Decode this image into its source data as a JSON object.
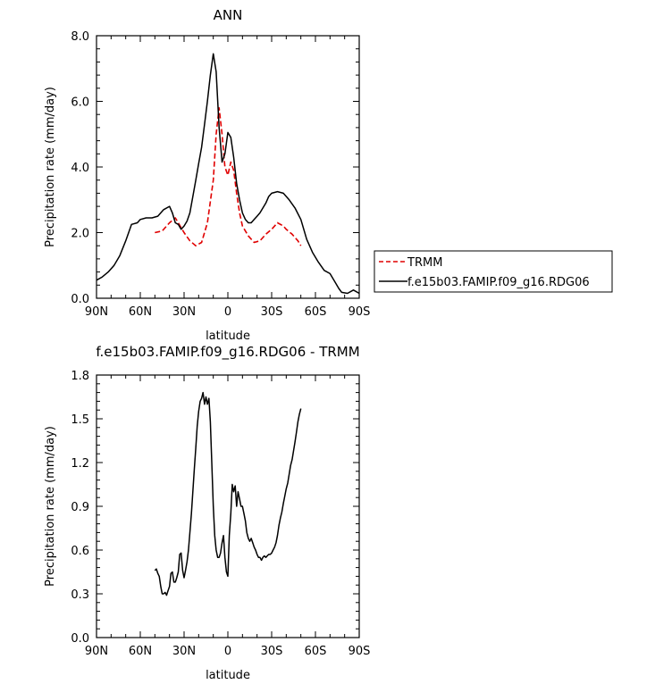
{
  "chart_data": [
    {
      "type": "line",
      "title": "ANN",
      "xlabel": "latitude",
      "ylabel": "Precipitation rate (mm/day)",
      "xlim": [
        90,
        -90
      ],
      "ylim": [
        0.0,
        8.0
      ],
      "xticks": [
        90,
        60,
        30,
        0,
        -30,
        -60,
        -90
      ],
      "xtick_labels": [
        "90N",
        "60N",
        "30N",
        "0",
        "30S",
        "60S",
        "90S"
      ],
      "yticks": [
        0.0,
        2.0,
        4.0,
        6.0,
        8.0
      ],
      "ytick_labels": [
        "0.0",
        "2.0",
        "4.0",
        "6.0",
        "8.0"
      ],
      "legend_placement": "right, outside the plot",
      "series": [
        {
          "name": "TRMM",
          "color": "#e00000",
          "dash": true,
          "x": [
            50,
            45,
            40,
            36,
            30,
            26,
            22,
            18,
            14,
            10,
            8,
            6,
            4,
            2,
            0,
            -2,
            -4,
            -6,
            -8,
            -10,
            -14,
            -18,
            -22,
            -26,
            -30,
            -34,
            -38,
            -40,
            -44,
            -48,
            -50
          ],
          "y": [
            2.0,
            2.05,
            2.3,
            2.45,
            2.0,
            1.75,
            1.6,
            1.7,
            2.3,
            3.6,
            5.0,
            5.8,
            5.0,
            4.0,
            3.75,
            4.15,
            3.9,
            3.2,
            2.6,
            2.2,
            1.9,
            1.7,
            1.75,
            1.95,
            2.1,
            2.3,
            2.2,
            2.1,
            1.95,
            1.75,
            1.6
          ]
        },
        {
          "name": "f.e15b03.FAMIP.f09_g16.RDG06",
          "color": "#000000",
          "dash": false,
          "x": [
            90,
            86,
            82,
            78,
            74,
            70,
            66,
            62,
            60,
            56,
            52,
            48,
            44,
            40,
            38,
            36,
            34,
            32,
            30,
            28,
            26,
            24,
            22,
            20,
            18,
            16,
            14,
            12,
            10,
            8,
            6,
            4,
            2,
            0,
            -2,
            -4,
            -6,
            -8,
            -10,
            -12,
            -14,
            -16,
            -18,
            -20,
            -22,
            -24,
            -26,
            -28,
            -30,
            -34,
            -38,
            -42,
            -46,
            -50,
            -54,
            -58,
            -62,
            -66,
            -70,
            -74,
            -76,
            -78,
            -82,
            -86,
            -90
          ],
          "y": [
            0.55,
            0.65,
            0.8,
            1.0,
            1.3,
            1.75,
            2.25,
            2.3,
            2.4,
            2.45,
            2.45,
            2.5,
            2.7,
            2.8,
            2.6,
            2.3,
            2.25,
            2.1,
            2.2,
            2.35,
            2.6,
            3.1,
            3.6,
            4.1,
            4.6,
            5.3,
            6.0,
            6.8,
            7.45,
            6.9,
            5.2,
            4.15,
            4.4,
            5.05,
            4.9,
            4.3,
            3.5,
            3.0,
            2.6,
            2.4,
            2.3,
            2.3,
            2.4,
            2.5,
            2.6,
            2.75,
            2.9,
            3.1,
            3.2,
            3.25,
            3.2,
            3.0,
            2.75,
            2.4,
            1.8,
            1.4,
            1.1,
            0.85,
            0.75,
            0.45,
            0.3,
            0.18,
            0.15,
            0.25,
            0.15
          ]
        }
      ]
    },
    {
      "type": "line",
      "title": "f.e15b03.FAMIP.f09_g16.RDG06 - TRMM",
      "xlabel": "latitude",
      "ylabel": "Precipitation rate (mm/day)",
      "xlim": [
        90,
        -90
      ],
      "ylim": [
        0.0,
        1.8
      ],
      "xticks": [
        90,
        60,
        30,
        0,
        -30,
        -60,
        -90
      ],
      "xtick_labels": [
        "90N",
        "60N",
        "30N",
        "0",
        "30S",
        "60S",
        "90S"
      ],
      "yticks": [
        0.0,
        0.3,
        0.6,
        0.9,
        1.2,
        1.5,
        1.8
      ],
      "ytick_labels": [
        "0.0",
        "0.3",
        "0.6",
        "0.9",
        "1.2",
        "1.5",
        "1.8"
      ],
      "series": [
        {
          "color": "#000000",
          "dash": false,
          "x": [
            50,
            49,
            48,
            47,
            46,
            45,
            44,
            43,
            42,
            41,
            40,
            39,
            38,
            37,
            36,
            35,
            34,
            33,
            32,
            31,
            30,
            29,
            28,
            27,
            26,
            25,
            24,
            23,
            22,
            21,
            20,
            19,
            18,
            17,
            16,
            15,
            14,
            13,
            12,
            11,
            10,
            9,
            8,
            7,
            6,
            5,
            4,
            3,
            2,
            1,
            0,
            -1,
            -2,
            -3,
            -4,
            -5,
            -6,
            -7,
            -8,
            -9,
            -10,
            -11,
            -12,
            -13,
            -14,
            -15,
            -16,
            -17,
            -18,
            -19,
            -20,
            -21,
            -22,
            -23,
            -24,
            -25,
            -26,
            -27,
            -28,
            -29,
            -30,
            -31,
            -32,
            -33,
            -34,
            -35,
            -36,
            -37,
            -38,
            -39,
            -40,
            -41,
            -42,
            -43,
            -44,
            -45,
            -46,
            -47,
            -48,
            -49,
            -50
          ],
          "y": [
            0.46,
            0.47,
            0.44,
            0.42,
            0.35,
            0.3,
            0.3,
            0.31,
            0.29,
            0.32,
            0.35,
            0.44,
            0.45,
            0.38,
            0.38,
            0.41,
            0.45,
            0.57,
            0.58,
            0.46,
            0.41,
            0.46,
            0.52,
            0.6,
            0.72,
            0.85,
            1.0,
            1.15,
            1.3,
            1.45,
            1.55,
            1.62,
            1.64,
            1.68,
            1.6,
            1.65,
            1.6,
            1.64,
            1.48,
            1.2,
            0.9,
            0.7,
            0.6,
            0.55,
            0.55,
            0.58,
            0.65,
            0.7,
            0.55,
            0.45,
            0.42,
            0.7,
            0.85,
            1.05,
            1.0,
            1.04,
            0.9,
            1.0,
            0.95,
            0.9,
            0.9,
            0.85,
            0.8,
            0.72,
            0.68,
            0.66,
            0.68,
            0.65,
            0.62,
            0.6,
            0.57,
            0.55,
            0.55,
            0.53,
            0.55,
            0.56,
            0.55,
            0.56,
            0.57,
            0.57,
            0.58,
            0.6,
            0.62,
            0.65,
            0.7,
            0.77,
            0.82,
            0.86,
            0.92,
            0.97,
            1.02,
            1.06,
            1.12,
            1.18,
            1.22,
            1.28,
            1.34,
            1.41,
            1.48,
            1.53,
            1.57
          ]
        }
      ]
    }
  ]
}
